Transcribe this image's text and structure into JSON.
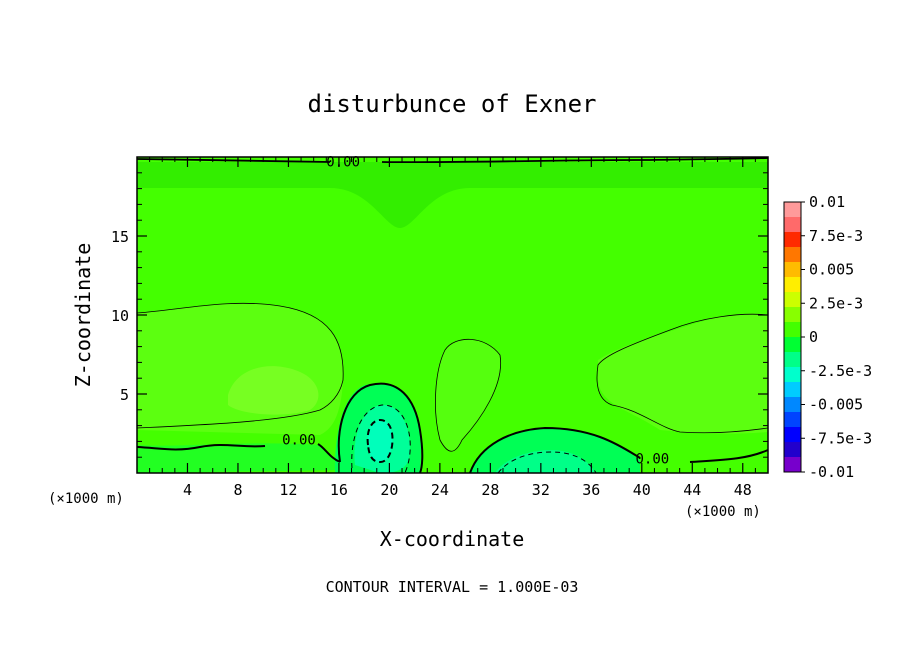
{
  "chart_data": {
    "type": "contour",
    "title": "disturbunce of Exner",
    "xlabel": "X-coordinate",
    "ylabel": "Z-coordinate",
    "x_unit": "(×1000 m)",
    "y_unit": "(×1000 m)",
    "xlim": [
      0,
      50
    ],
    "ylim": [
      0,
      20
    ],
    "x_ticks": [
      4,
      8,
      12,
      16,
      20,
      24,
      28,
      32,
      36,
      40,
      44,
      48
    ],
    "y_ticks": [
      5,
      10,
      15
    ],
    "contour_interval_text": "CONTOUR INTERVAL = 1.000E-03",
    "contour_labels": [
      {
        "text": "0.00",
        "x": 15.0,
        "z": 19.4
      },
      {
        "text": "0.00",
        "x": 11.5,
        "z": 1.8
      },
      {
        "text": "0.00",
        "x": 39.5,
        "z": 0.6
      }
    ],
    "colorbar": {
      "labels": [
        "0.01",
        "7.5e-3",
        "0.005",
        "2.5e-3",
        "0",
        "-2.5e-3",
        "-0.005",
        "-7.5e-3",
        "-0.01"
      ],
      "bands": [
        "#ff9a9a",
        "#ff6a6a",
        "#ff2a00",
        "#ff7700",
        "#ffbb00",
        "#ffee00",
        "#ccff00",
        "#88ff00",
        "#44ff00",
        "#00ff33",
        "#00ff88",
        "#00ffcc",
        "#00ccff",
        "#0088ff",
        "#0044ff",
        "#0000ff",
        "#2200cc",
        "#7700cc"
      ]
    },
    "field_colors": {
      "base": "#44ff00",
      "top_band": "#33ee00",
      "positive_region": "#66ff11",
      "weak_positive": "#77ff22",
      "negative_region": "#00ff55",
      "negative_core": "#00ffaa",
      "contour_line": "#000000"
    }
  }
}
